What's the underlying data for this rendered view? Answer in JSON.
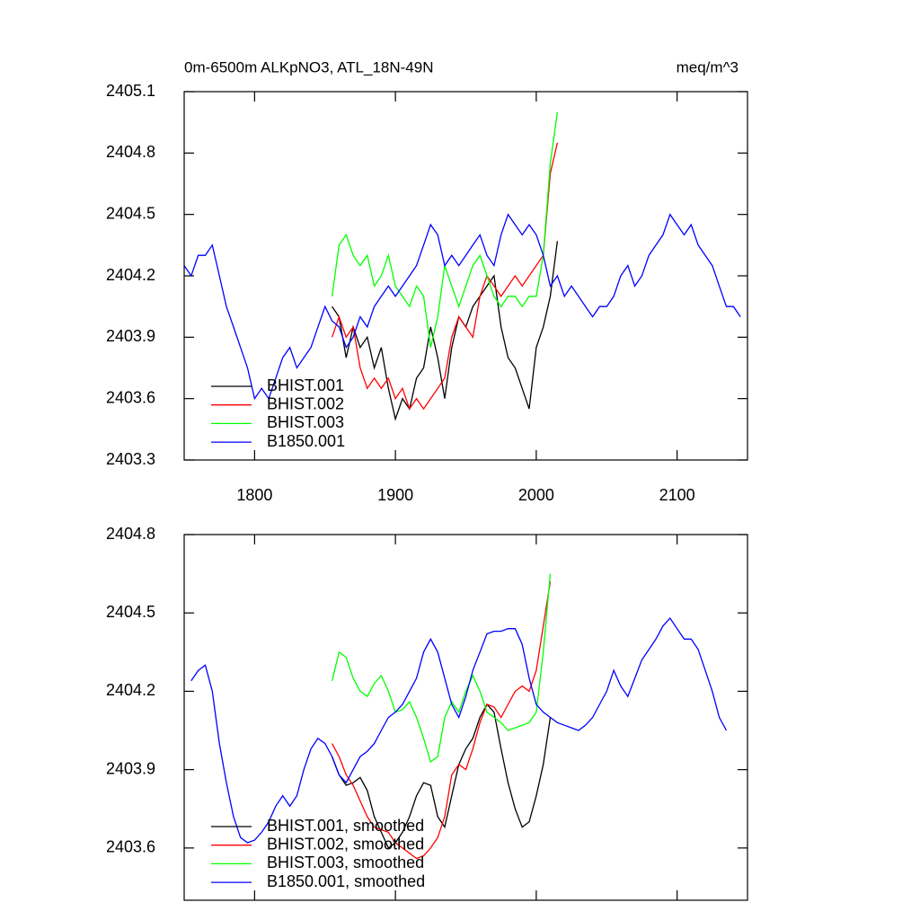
{
  "chart_data": [
    {
      "type": "line",
      "title": "0m-6500m ALKpNO3, ATL_18N-49N",
      "units": "meq/m^3",
      "xlim": [
        1750,
        2150
      ],
      "xticks": [
        1800,
        1900,
        2000,
        2100
      ],
      "xtick_labels": true,
      "ylim": [
        2403.3,
        2405.1
      ],
      "yticks": [
        2403.3,
        2403.6,
        2403.9,
        2404.2,
        2404.5,
        2404.8,
        2405.1
      ],
      "legend": "lower left",
      "series": [
        {
          "name": "BHIST.001",
          "color": "#000000",
          "x": [
            1855,
            1860,
            1865,
            1870,
            1875,
            1880,
            1885,
            1890,
            1895,
            1900,
            1905,
            1910,
            1915,
            1920,
            1925,
            1930,
            1935,
            1940,
            1945,
            1950,
            1955,
            1960,
            1965,
            1970,
            1975,
            1980,
            1985,
            1990,
            1995,
            2000,
            2005,
            2010,
            2015
          ],
          "values": [
            2404.05,
            2404.0,
            2403.8,
            2403.95,
            2403.85,
            2403.9,
            2403.75,
            2403.85,
            2403.65,
            2403.5,
            2403.6,
            2403.55,
            2403.7,
            2403.75,
            2403.95,
            2403.8,
            2403.6,
            2403.85,
            2404.0,
            2403.95,
            2404.05,
            2404.1,
            2404.15,
            2404.2,
            2403.95,
            2403.8,
            2403.75,
            2403.65,
            2403.55,
            2403.85,
            2403.95,
            2404.1,
            2404.37
          ]
        },
        {
          "name": "BHIST.002",
          "color": "#ff0000",
          "x": [
            1855,
            1860,
            1865,
            1870,
            1875,
            1880,
            1885,
            1890,
            1895,
            1900,
            1905,
            1910,
            1915,
            1920,
            1925,
            1930,
            1935,
            1940,
            1945,
            1950,
            1955,
            1960,
            1965,
            1970,
            1975,
            1980,
            1985,
            1990,
            1995,
            2000,
            2005,
            2010,
            2015
          ],
          "values": [
            2403.9,
            2404.0,
            2403.9,
            2403.95,
            2403.75,
            2403.65,
            2403.7,
            2403.65,
            2403.7,
            2403.6,
            2403.65,
            2403.55,
            2403.6,
            2403.55,
            2403.6,
            2403.65,
            2403.7,
            2403.9,
            2404.0,
            2403.95,
            2403.9,
            2404.1,
            2404.2,
            2404.15,
            2404.1,
            2404.15,
            2404.2,
            2404.15,
            2404.2,
            2404.25,
            2404.3,
            2404.7,
            2404.85
          ]
        },
        {
          "name": "BHIST.003",
          "color": "#00ff00",
          "x": [
            1855,
            1860,
            1865,
            1870,
            1875,
            1880,
            1885,
            1890,
            1895,
            1900,
            1905,
            1910,
            1915,
            1920,
            1925,
            1930,
            1935,
            1940,
            1945,
            1950,
            1955,
            1960,
            1965,
            1970,
            1975,
            1980,
            1985,
            1990,
            1995,
            2000,
            2005,
            2010,
            2015
          ],
          "values": [
            2404.1,
            2404.35,
            2404.4,
            2404.3,
            2404.25,
            2404.3,
            2404.15,
            2404.2,
            2404.3,
            2404.15,
            2404.1,
            2404.05,
            2404.15,
            2404.1,
            2403.85,
            2404.0,
            2404.25,
            2404.15,
            2404.05,
            2404.15,
            2404.25,
            2404.3,
            2404.2,
            2404.1,
            2404.05,
            2404.1,
            2404.1,
            2404.05,
            2404.1,
            2404.1,
            2404.3,
            2404.75,
            2405.0
          ]
        },
        {
          "name": "B1850.001",
          "color": "#0000ff",
          "x": [
            1750,
            1755,
            1760,
            1765,
            1770,
            1775,
            1780,
            1785,
            1790,
            1795,
            1800,
            1805,
            1810,
            1815,
            1820,
            1825,
            1830,
            1835,
            1840,
            1845,
            1850,
            1855,
            1860,
            1865,
            1870,
            1875,
            1880,
            1885,
            1890,
            1895,
            1900,
            1905,
            1910,
            1915,
            1920,
            1925,
            1930,
            1935,
            1940,
            1945,
            1950,
            1955,
            1960,
            1965,
            1970,
            1975,
            1980,
            1985,
            1990,
            1995,
            2000,
            2005,
            2010,
            2015,
            2020,
            2025,
            2030,
            2035,
            2040,
            2045,
            2050,
            2055,
            2060,
            2065,
            2070,
            2075,
            2080,
            2085,
            2090,
            2095,
            2100,
            2105,
            2110,
            2115,
            2120,
            2125,
            2130,
            2135,
            2140,
            2145
          ],
          "values": [
            2404.25,
            2404.2,
            2404.3,
            2404.3,
            2404.35,
            2404.2,
            2404.05,
            2403.95,
            2403.85,
            2403.75,
            2403.6,
            2403.65,
            2403.6,
            2403.7,
            2403.8,
            2403.85,
            2403.75,
            2403.8,
            2403.85,
            2403.95,
            2404.05,
            2403.98,
            2403.95,
            2403.85,
            2403.9,
            2404.0,
            2403.95,
            2404.05,
            2404.1,
            2404.15,
            2404.1,
            2404.15,
            2404.2,
            2404.25,
            2404.35,
            2404.45,
            2404.4,
            2404.25,
            2404.3,
            2404.25,
            2404.3,
            2404.35,
            2404.4,
            2404.3,
            2404.25,
            2404.4,
            2404.5,
            2404.45,
            2404.4,
            2404.45,
            2404.4,
            2404.3,
            2404.15,
            2404.2,
            2404.1,
            2404.15,
            2404.1,
            2404.05,
            2404.0,
            2404.05,
            2404.05,
            2404.1,
            2404.2,
            2404.25,
            2404.15,
            2404.2,
            2404.3,
            2404.35,
            2404.4,
            2404.5,
            2404.45,
            2404.4,
            2404.45,
            2404.35,
            2404.3,
            2404.25,
            2404.15,
            2404.05,
            2404.05,
            2404.0
          ]
        }
      ]
    },
    {
      "type": "line",
      "xlim": [
        1750,
        2150
      ],
      "xticks": [
        1800,
        1900,
        2000,
        2100
      ],
      "xtick_labels": false,
      "ylim": [
        2403.4,
        2404.8
      ],
      "yticks": [
        2403.6,
        2403.9,
        2404.2,
        2404.5,
        2404.8
      ],
      "legend": "lower left",
      "series": [
        {
          "name": "BHIST.001, smoothed",
          "color": "#000000",
          "x": [
            1855,
            1860,
            1865,
            1870,
            1875,
            1880,
            1885,
            1890,
            1895,
            1900,
            1905,
            1910,
            1915,
            1920,
            1925,
            1930,
            1935,
            1940,
            1945,
            1950,
            1955,
            1960,
            1965,
            1970,
            1975,
            1980,
            1985,
            1990,
            1995,
            2000,
            2005,
            2010
          ],
          "values": [
            2403.95,
            2403.88,
            2403.84,
            2403.85,
            2403.87,
            2403.82,
            2403.72,
            2403.66,
            2403.6,
            2403.62,
            2403.66,
            2403.72,
            2403.8,
            2403.85,
            2403.84,
            2403.72,
            2403.68,
            2403.8,
            2403.92,
            2403.98,
            2404.02,
            2404.1,
            2404.15,
            2404.12,
            2403.98,
            2403.85,
            2403.75,
            2403.68,
            2403.7,
            2403.8,
            2403.92,
            2404.1
          ]
        },
        {
          "name": "BHIST.002, smoothed",
          "color": "#ff0000",
          "x": [
            1855,
            1860,
            1865,
            1870,
            1875,
            1880,
            1885,
            1890,
            1895,
            1900,
            1905,
            1910,
            1915,
            1920,
            1925,
            1930,
            1935,
            1940,
            1945,
            1950,
            1955,
            1960,
            1965,
            1970,
            1975,
            1980,
            1985,
            1990,
            1995,
            2000,
            2005,
            2010
          ],
          "values": [
            2404.0,
            2403.95,
            2403.88,
            2403.84,
            2403.78,
            2403.72,
            2403.68,
            2403.67,
            2403.66,
            2403.62,
            2403.6,
            2403.58,
            2403.56,
            2403.57,
            2403.6,
            2403.64,
            2403.72,
            2403.88,
            2403.92,
            2403.9,
            2403.98,
            2404.08,
            2404.15,
            2404.14,
            2404.1,
            2404.15,
            2404.2,
            2404.22,
            2404.2,
            2404.28,
            2404.45,
            2404.62
          ]
        },
        {
          "name": "BHIST.003, smoothed",
          "color": "#00ff00",
          "x": [
            1855,
            1860,
            1865,
            1870,
            1875,
            1880,
            1885,
            1890,
            1895,
            1900,
            1905,
            1910,
            1915,
            1920,
            1925,
            1930,
            1935,
            1940,
            1945,
            1950,
            1955,
            1960,
            1965,
            1970,
            1975,
            1980,
            1985,
            1990,
            1995,
            2000,
            2005,
            2010
          ],
          "values": [
            2404.24,
            2404.35,
            2404.33,
            2404.25,
            2404.2,
            2404.18,
            2404.23,
            2404.26,
            2404.2,
            2404.12,
            2404.13,
            2404.16,
            2404.1,
            2404.02,
            2403.93,
            2403.95,
            2404.1,
            2404.16,
            2404.12,
            2404.2,
            2404.26,
            2404.2,
            2404.12,
            2404.1,
            2404.08,
            2404.05,
            2404.06,
            2404.07,
            2404.08,
            2404.12,
            2404.35,
            2404.65
          ]
        },
        {
          "name": "B1850.001, smoothed",
          "color": "#0000ff",
          "x": [
            1755,
            1760,
            1765,
            1770,
            1775,
            1780,
            1785,
            1790,
            1795,
            1800,
            1805,
            1810,
            1815,
            1820,
            1825,
            1830,
            1835,
            1840,
            1845,
            1850,
            1855,
            1860,
            1865,
            1870,
            1875,
            1880,
            1885,
            1890,
            1895,
            1900,
            1905,
            1910,
            1915,
            1920,
            1925,
            1930,
            1935,
            1940,
            1945,
            1950,
            1955,
            1960,
            1965,
            1970,
            1975,
            1980,
            1985,
            1990,
            1995,
            2000,
            2005,
            2010,
            2015,
            2020,
            2025,
            2030,
            2035,
            2040,
            2045,
            2050,
            2055,
            2060,
            2065,
            2070,
            2075,
            2080,
            2085,
            2090,
            2095,
            2100,
            2105,
            2110,
            2115,
            2120,
            2125,
            2130,
            2135
          ],
          "values": [
            2404.24,
            2404.28,
            2404.3,
            2404.2,
            2404.0,
            2403.85,
            2403.72,
            2403.64,
            2403.62,
            2403.63,
            2403.66,
            2403.7,
            2403.76,
            2403.8,
            2403.76,
            2403.8,
            2403.9,
            2403.98,
            2404.02,
            2404.0,
            2403.95,
            2403.88,
            2403.85,
            2403.9,
            2403.95,
            2403.97,
            2404.0,
            2404.05,
            2404.1,
            2404.12,
            2404.15,
            2404.2,
            2404.25,
            2404.35,
            2404.4,
            2404.35,
            2404.25,
            2404.15,
            2404.1,
            2404.18,
            2404.28,
            2404.35,
            2404.42,
            2404.43,
            2404.43,
            2404.44,
            2404.44,
            2404.38,
            2404.25,
            2404.15,
            2404.12,
            2404.1,
            2404.08,
            2404.07,
            2404.06,
            2404.05,
            2404.07,
            2404.1,
            2404.15,
            2404.2,
            2404.28,
            2404.22,
            2404.18,
            2404.25,
            2404.32,
            2404.36,
            2404.4,
            2404.45,
            2404.48,
            2404.44,
            2404.4,
            2404.4,
            2404.36,
            2404.28,
            2404.2,
            2404.1,
            2404.05
          ]
        }
      ]
    }
  ]
}
